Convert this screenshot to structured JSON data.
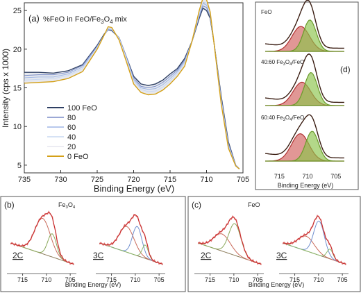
{
  "chart_data": [
    {
      "type": "line",
      "panel_label": "(a)",
      "title_prefix": "%FeO in FeO/Fe",
      "title_sub": "3",
      "title_mid": "O",
      "title_sub2": "4",
      "title_suffix": " mix",
      "xlabel": "Binding Energy (eV)",
      "ylabel": "Intensity (cps x 1000)",
      "xlim": [
        735,
        705
      ],
      "ylim": [
        4,
        26
      ],
      "xticks": [
        735,
        730,
        725,
        720,
        715,
        710,
        705
      ],
      "yticks": [
        5,
        10,
        15,
        20,
        25
      ],
      "legend_position": "bottom-left",
      "series": [
        {
          "name": "100 FeO",
          "color": "#2e3f63",
          "points": [
            [
              735,
              17.0
            ],
            [
              733,
              17.0
            ],
            [
              731,
              16.9
            ],
            [
              729,
              17.2
            ],
            [
              727,
              18.0
            ],
            [
              725,
              20.5
            ],
            [
              724,
              22.0
            ],
            [
              723.5,
              22.5
            ],
            [
              723,
              22.4
            ],
            [
              722,
              21.5
            ],
            [
              721,
              19.0
            ],
            [
              720,
              16.5
            ],
            [
              719,
              15.5
            ],
            [
              718,
              15.3
            ],
            [
              717,
              15.5
            ],
            [
              716,
              16.0
            ],
            [
              715,
              16.8
            ],
            [
              714,
              17.5
            ],
            [
              713,
              18.8
            ],
            [
              712,
              21.0
            ],
            [
              711,
              24.0
            ],
            [
              710.5,
              25.3
            ],
            [
              710,
              25.0
            ],
            [
              709.5,
              24.0
            ],
            [
              709,
              21.0
            ],
            [
              708,
              14.0
            ],
            [
              707,
              8.0
            ],
            [
              706,
              5.0
            ],
            [
              705.5,
              4.5
            ]
          ]
        },
        {
          "name": "80",
          "color": "#7a8cc7",
          "points": [
            [
              735,
              16.6
            ],
            [
              733,
              16.7
            ],
            [
              731,
              16.7
            ],
            [
              729,
              17.0
            ],
            [
              727,
              17.9
            ],
            [
              725,
              20.4
            ],
            [
              724,
              21.9
            ],
            [
              723.5,
              22.5
            ],
            [
              723,
              22.5
            ],
            [
              722,
              21.5
            ],
            [
              721,
              19.0
            ],
            [
              720,
              16.3
            ],
            [
              719,
              15.2
            ],
            [
              718,
              15.0
            ],
            [
              717,
              15.2
            ],
            [
              716,
              15.7
            ],
            [
              715,
              16.5
            ],
            [
              714,
              17.3
            ],
            [
              713,
              18.6
            ],
            [
              712,
              21.0
            ],
            [
              711,
              24.2
            ],
            [
              710.5,
              25.6
            ],
            [
              710,
              25.4
            ],
            [
              709.5,
              24.2
            ],
            [
              709,
              21.0
            ],
            [
              708,
              13.8
            ],
            [
              707,
              7.8
            ],
            [
              706,
              5.0
            ],
            [
              705.5,
              4.5
            ]
          ]
        },
        {
          "name": "60",
          "color": "#9fb6e6",
          "points": [
            [
              735,
              16.3
            ],
            [
              733,
              16.4
            ],
            [
              731,
              16.4
            ],
            [
              729,
              16.8
            ],
            [
              727,
              17.7
            ],
            [
              725,
              20.3
            ],
            [
              724,
              21.9
            ],
            [
              723.5,
              22.6
            ],
            [
              723,
              22.5
            ],
            [
              722,
              21.5
            ],
            [
              721,
              18.9
            ],
            [
              720,
              16.1
            ],
            [
              719,
              15.0
            ],
            [
              718,
              14.8
            ],
            [
              717,
              14.9
            ],
            [
              716,
              15.4
            ],
            [
              715,
              16.2
            ],
            [
              714,
              17.1
            ],
            [
              713,
              18.4
            ],
            [
              712,
              21.0
            ],
            [
              711,
              24.4
            ],
            [
              710.5,
              25.9
            ],
            [
              710,
              25.7
            ],
            [
              709.5,
              24.3
            ],
            [
              709,
              21.0
            ],
            [
              708,
              13.6
            ],
            [
              707,
              7.6
            ],
            [
              706,
              5.0
            ],
            [
              705.5,
              4.5
            ]
          ]
        },
        {
          "name": "40",
          "color": "#c9d8f2",
          "points": [
            [
              735,
              16.0
            ],
            [
              733,
              16.1
            ],
            [
              731,
              16.2
            ],
            [
              729,
              16.6
            ],
            [
              727,
              17.5
            ],
            [
              725,
              20.2
            ],
            [
              724,
              21.9
            ],
            [
              723.5,
              22.7
            ],
            [
              723,
              22.6
            ],
            [
              722,
              21.4
            ],
            [
              721,
              18.8
            ],
            [
              720,
              15.9
            ],
            [
              719,
              14.8
            ],
            [
              718,
              14.5
            ],
            [
              717,
              14.6
            ],
            [
              716,
              15.1
            ],
            [
              715,
              15.9
            ],
            [
              714,
              16.9
            ],
            [
              713,
              18.2
            ],
            [
              712,
              21.0
            ],
            [
              711,
              24.6
            ],
            [
              710.5,
              26.1
            ],
            [
              710,
              26.0
            ],
            [
              709.5,
              24.4
            ],
            [
              709,
              21.0
            ],
            [
              708,
              13.4
            ],
            [
              707,
              7.4
            ],
            [
              706,
              4.9
            ],
            [
              705.5,
              4.5
            ]
          ]
        },
        {
          "name": "20",
          "color": "#e6e6ef",
          "points": [
            [
              735,
              15.8
            ],
            [
              733,
              15.9
            ],
            [
              731,
              16.0
            ],
            [
              729,
              16.4
            ],
            [
              727,
              17.3
            ],
            [
              725,
              20.1
            ],
            [
              724,
              21.9
            ],
            [
              723.5,
              22.8
            ],
            [
              723,
              22.7
            ],
            [
              722,
              21.3
            ],
            [
              721,
              18.6
            ],
            [
              720,
              15.7
            ],
            [
              719,
              14.6
            ],
            [
              718,
              14.3
            ],
            [
              717,
              14.4
            ],
            [
              716,
              14.9
            ],
            [
              715,
              15.7
            ],
            [
              714,
              16.7
            ],
            [
              713,
              18.0
            ],
            [
              712,
              21.0
            ],
            [
              711,
              24.8
            ],
            [
              710.5,
              26.3
            ],
            [
              710,
              26.2
            ],
            [
              709.5,
              24.6
            ],
            [
              709,
              21.0
            ],
            [
              708,
              13.2
            ],
            [
              707,
              7.3
            ],
            [
              706,
              4.9
            ],
            [
              705.5,
              4.5
            ]
          ]
        },
        {
          "name": "0 FeO",
          "color": "#d4a017",
          "points": [
            [
              735,
              15.6
            ],
            [
              733,
              15.7
            ],
            [
              731,
              15.8
            ],
            [
              729,
              16.2
            ],
            [
              727,
              17.1
            ],
            [
              725,
              20.0
            ],
            [
              724,
              21.9
            ],
            [
              723.5,
              22.9
            ],
            [
              723,
              22.8
            ],
            [
              722,
              21.2
            ],
            [
              721,
              18.4
            ],
            [
              720,
              15.5
            ],
            [
              719,
              14.4
            ],
            [
              718,
              14.1
            ],
            [
              717,
              14.2
            ],
            [
              716,
              14.7
            ],
            [
              715,
              15.5
            ],
            [
              714,
              16.5
            ],
            [
              713,
              17.8
            ],
            [
              712,
              21.0
            ],
            [
              711,
              25.0
            ],
            [
              710.5,
              26.6
            ],
            [
              710,
              26.4
            ],
            [
              709.5,
              24.8
            ],
            [
              709,
              21.0
            ],
            [
              708,
              13.0
            ],
            [
              707,
              7.2
            ],
            [
              706,
              4.9
            ],
            [
              705.5,
              4.5
            ]
          ]
        }
      ]
    },
    {
      "type": "line",
      "panel_label": "(d)",
      "xlabel": "Binding Energy (eV)",
      "xticks": [
        715,
        710,
        705
      ],
      "xlim": [
        718,
        703
      ],
      "insets": [
        {
          "label_prefix": "FeO",
          "sub1": "",
          "mid": "",
          "sub2": "",
          "suffix": ""
        },
        {
          "label_prefix": "40:60 Fe",
          "sub1": "3",
          "mid": "O",
          "sub2": "4",
          "suffix": "/FeO"
        },
        {
          "label_prefix": "60:40 Fe",
          "sub1": "3",
          "mid": "O",
          "sub2": "4",
          "suffix": "/FeO"
        }
      ]
    },
    {
      "type": "line",
      "panel_label": "(b)",
      "sample_prefix": "Fe",
      "sample_sub1": "3",
      "sample_mid": "O",
      "sample_sub2": "4",
      "xlabel": "Binding Energy (eV)",
      "xticks": [
        715,
        710,
        705
      ],
      "fits": [
        "2C",
        "3C"
      ]
    },
    {
      "type": "line",
      "panel_label": "(c)",
      "sample": "FeO",
      "xlabel": "Binding Energy (eV)",
      "xticks": [
        715,
        710,
        705
      ],
      "fits": [
        "2C",
        "3C"
      ]
    }
  ]
}
